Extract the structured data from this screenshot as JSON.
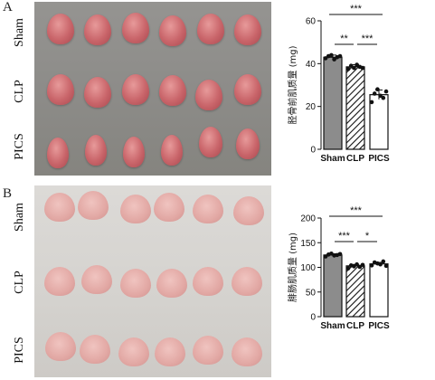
{
  "panels": [
    {
      "letter": "A",
      "rows": [
        "Sham",
        "CLP",
        "PICS"
      ]
    },
    {
      "letter": "B",
      "rows": [
        "Sham",
        "CLP",
        "PICS"
      ]
    }
  ],
  "colors": {
    "sham_bar": "#8c8c8c",
    "clp_bar": "hatched",
    "pics_bar": "#ffffff",
    "muscle_a": "#c9656a",
    "muscle_b": "#e2a8a4"
  },
  "chart_data": [
    {
      "type": "bar",
      "categories": [
        "Sham",
        "CLP",
        "PICS"
      ],
      "values": [
        43,
        38.5,
        25.5
      ],
      "errors": [
        1.0,
        1.0,
        2.2
      ],
      "points": [
        [
          42.5,
          43.5,
          44,
          42,
          43,
          43.5
        ],
        [
          37.5,
          39,
          38,
          39.5,
          38.5,
          38
        ],
        [
          22,
          26,
          28,
          25,
          24,
          27
        ]
      ],
      "ylabel": "胫骨前肌质量 (mg)",
      "ylim": [
        0,
        60
      ],
      "yticks": [
        0,
        20,
        40,
        60
      ],
      "significance": [
        {
          "pair": [
            "Sham",
            "PICS"
          ],
          "label": "***"
        },
        {
          "pair": [
            "Sham",
            "CLP"
          ],
          "label": "**"
        },
        {
          "pair": [
            "CLP",
            "PICS"
          ],
          "label": "***"
        }
      ]
    },
    {
      "type": "bar",
      "categories": [
        "Sham",
        "CLP",
        "PICS"
      ],
      "values": [
        125,
        103,
        107
      ],
      "errors": [
        2.5,
        3.0,
        3.0
      ],
      "points": [
        [
          122,
          126,
          128,
          124,
          125,
          127
        ],
        [
          98,
          104,
          102,
          106,
          101,
          105
        ],
        [
          104,
          110,
          108,
          106,
          112,
          103
        ]
      ],
      "ylabel": "腓肠肌质量 (mg)",
      "ylim": [
        0,
        200
      ],
      "yticks": [
        0,
        50,
        100,
        150,
        200
      ],
      "significance": [
        {
          "pair": [
            "Sham",
            "PICS"
          ],
          "label": "***"
        },
        {
          "pair": [
            "Sham",
            "CLP"
          ],
          "label": "***"
        },
        {
          "pair": [
            "CLP",
            "PICS"
          ],
          "label": "*"
        }
      ]
    }
  ]
}
